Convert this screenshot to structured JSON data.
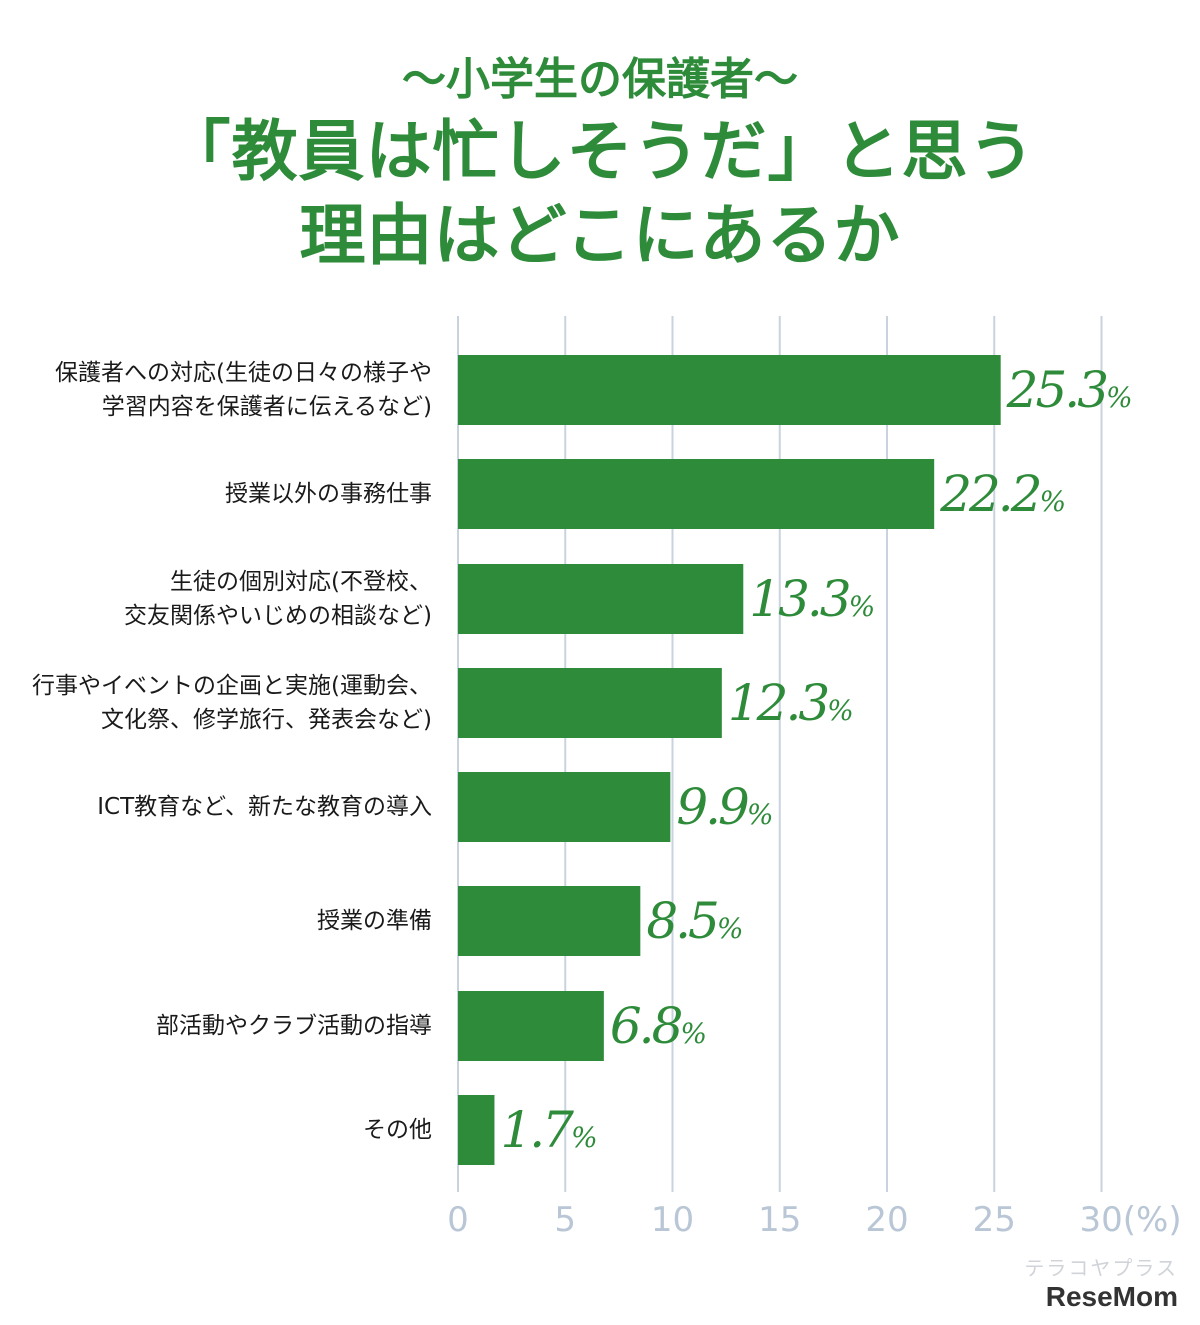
{
  "header": {
    "subtitle": "〜小学生の保護者〜",
    "title_line1": "「教員は忙しそうだ」と思う",
    "title_line2": "理由はどこにあるか"
  },
  "colors": {
    "bar": "#2e8b3a",
    "grid": "#c9d3df",
    "tick": "#b9c6d6",
    "value": "#2e8b3a"
  },
  "chart_data": {
    "type": "bar",
    "orientation": "horizontal",
    "categories": [
      "保護者への対応(生徒の日々の様子や\n学習内容を保護者に伝えるなど)",
      "授業以外の事務仕事",
      "生徒の個別対応(不登校、\n交友関係やいじめの相談など)",
      "行事やイベントの企画と実施(運動会、\n文化祭、修学旅行、発表会など)",
      "ICT教育など、新たな教育の導入",
      "授業の準備",
      "部活動やクラブ活動の指導",
      "その他"
    ],
    "values": [
      25.3,
      22.2,
      13.3,
      12.3,
      9.9,
      8.5,
      6.8,
      1.7
    ],
    "value_labels": [
      "25.3",
      "22.2",
      "13.3",
      "12.3",
      "9.9",
      "8.5",
      "6.8",
      "1.7"
    ],
    "value_unit": "%",
    "xlim": [
      0,
      30
    ],
    "xticks": [
      "0",
      "5",
      "10",
      "15",
      "20",
      "25",
      "30(%)"
    ],
    "grid": true
  },
  "watermark": {
    "line1": "テラコヤプラス",
    "line2": "ReseMom"
  }
}
